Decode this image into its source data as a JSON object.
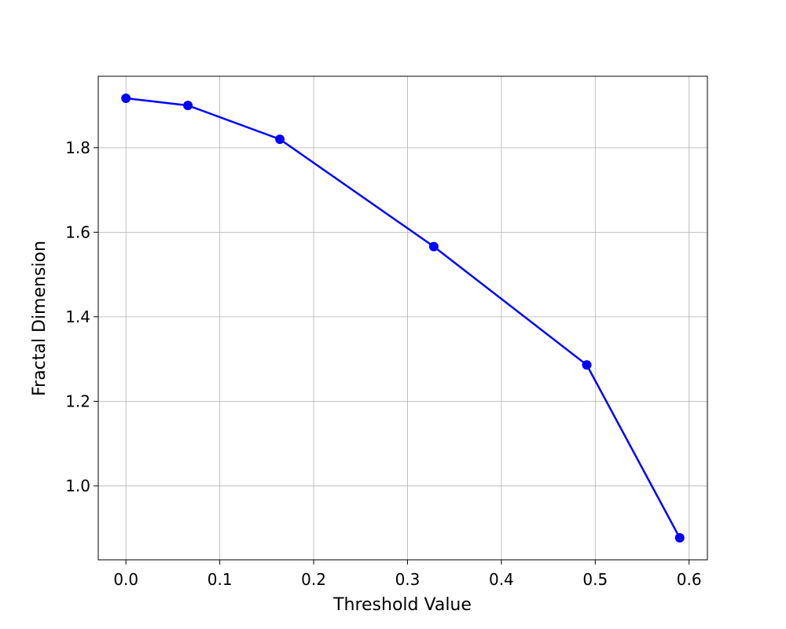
{
  "chart_data": {
    "type": "line",
    "x_label": "Threshold Value",
    "y_label": "Fractal Dimension",
    "x": [
      0,
      0.066,
      0.164,
      0.328,
      0.491,
      0.59
    ],
    "series": [
      {
        "name": "Fractal Dimension",
        "color": "#0000ff",
        "values": [
          1.917,
          1.9,
          1.82,
          1.566,
          1.286,
          0.877
        ]
      }
    ],
    "xlim": [
      -0.0295,
      0.6195
    ],
    "xticks": [
      {
        "value": 0,
        "label": "0.0"
      },
      0.1,
      0.2,
      0.3,
      0.4,
      0.5,
      0.6
    ],
    "ylim": [
      0.825,
      1.969
    ],
    "yticks": [
      {
        "value": 1,
        "label": "1.0"
      },
      1.2,
      1.4,
      1.6,
      1.8
    ],
    "grid": true
  }
}
